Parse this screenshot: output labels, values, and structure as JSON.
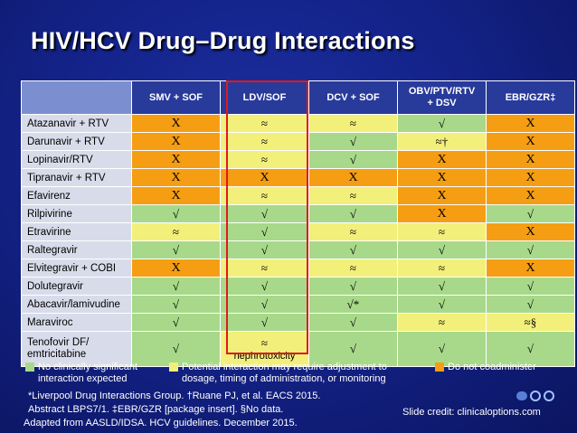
{
  "title": "HIV/HCV Drug–Drug Interactions",
  "columns": [
    "SMV + SOF",
    "LDV/SOF",
    "DCV + SOF",
    "OBV/PTV/RTV\n+ DSV",
    "EBR/GZR‡"
  ],
  "rows": [
    {
      "drug": "Atazanavir + RTV",
      "cells": [
        {
          "v": "X",
          "s": "no"
        },
        {
          "v": "≈",
          "s": "pot"
        },
        {
          "v": "≈",
          "s": "pot"
        },
        {
          "v": "√",
          "s": "ok"
        },
        {
          "v": "X",
          "s": "no"
        }
      ]
    },
    {
      "drug": "Darunavir + RTV",
      "cells": [
        {
          "v": "X",
          "s": "no"
        },
        {
          "v": "≈",
          "s": "pot"
        },
        {
          "v": "√",
          "s": "ok"
        },
        {
          "v": "≈†",
          "s": "pot"
        },
        {
          "v": "X",
          "s": "no"
        }
      ]
    },
    {
      "drug": "Lopinavir/RTV",
      "cells": [
        {
          "v": "X",
          "s": "no"
        },
        {
          "v": "≈",
          "s": "pot"
        },
        {
          "v": "√",
          "s": "ok"
        },
        {
          "v": "X",
          "s": "no"
        },
        {
          "v": "X",
          "s": "no"
        }
      ]
    },
    {
      "drug": "Tipranavir + RTV",
      "cells": [
        {
          "v": "X",
          "s": "no"
        },
        {
          "v": "X",
          "s": "no"
        },
        {
          "v": "X",
          "s": "no"
        },
        {
          "v": "X",
          "s": "no"
        },
        {
          "v": "X",
          "s": "no"
        }
      ]
    },
    {
      "drug": "Efavirenz",
      "cells": [
        {
          "v": "X",
          "s": "no"
        },
        {
          "v": "≈",
          "s": "pot"
        },
        {
          "v": "≈",
          "s": "pot"
        },
        {
          "v": "X",
          "s": "no"
        },
        {
          "v": "X",
          "s": "no"
        }
      ]
    },
    {
      "drug": "Rilpivirine",
      "cells": [
        {
          "v": "√",
          "s": "ok"
        },
        {
          "v": "√",
          "s": "ok"
        },
        {
          "v": "√",
          "s": "ok"
        },
        {
          "v": "X",
          "s": "no"
        },
        {
          "v": "√",
          "s": "ok"
        }
      ]
    },
    {
      "drug": "Etravirine",
      "cells": [
        {
          "v": "≈",
          "s": "pot"
        },
        {
          "v": "√",
          "s": "ok"
        },
        {
          "v": "≈",
          "s": "pot"
        },
        {
          "v": "≈",
          "s": "pot"
        },
        {
          "v": "X",
          "s": "no"
        }
      ]
    },
    {
      "drug": "Raltegravir",
      "cells": [
        {
          "v": "√",
          "s": "ok"
        },
        {
          "v": "√",
          "s": "ok"
        },
        {
          "v": "√",
          "s": "ok"
        },
        {
          "v": "√",
          "s": "ok"
        },
        {
          "v": "√",
          "s": "ok"
        }
      ]
    },
    {
      "drug": "Elvitegravir + COBI",
      "cells": [
        {
          "v": "X",
          "s": "no"
        },
        {
          "v": "≈",
          "s": "pot"
        },
        {
          "v": "≈",
          "s": "pot"
        },
        {
          "v": "≈",
          "s": "pot"
        },
        {
          "v": "X",
          "s": "no"
        }
      ]
    },
    {
      "drug": "Dolutegravir",
      "cells": [
        {
          "v": "√",
          "s": "ok"
        },
        {
          "v": "√",
          "s": "ok"
        },
        {
          "v": "√",
          "s": "ok"
        },
        {
          "v": "√",
          "s": "ok"
        },
        {
          "v": "√",
          "s": "ok"
        }
      ]
    },
    {
      "drug": "Abacavir/lamivudine",
      "cells": [
        {
          "v": "√",
          "s": "ok"
        },
        {
          "v": "√",
          "s": "ok"
        },
        {
          "v": "√*",
          "s": "ok"
        },
        {
          "v": "√",
          "s": "ok"
        },
        {
          "v": "√",
          "s": "ok"
        }
      ]
    },
    {
      "drug": "Maraviroc",
      "cells": [
        {
          "v": "√",
          "s": "ok"
        },
        {
          "v": "√",
          "s": "ok"
        },
        {
          "v": "√",
          "s": "ok"
        },
        {
          "v": "≈",
          "s": "pot"
        },
        {
          "v": "≈§",
          "s": "pot"
        }
      ]
    },
    {
      "drug": "Tenofovir DF/\nemtricitabine",
      "tall": true,
      "cells": [
        {
          "v": "√",
          "s": "ok"
        },
        {
          "v": "≈",
          "s": "pot",
          "sub": "nephrotoxicity"
        },
        {
          "v": "√",
          "s": "ok"
        },
        {
          "v": "√",
          "s": "ok"
        },
        {
          "v": "√",
          "s": "ok"
        }
      ]
    }
  ],
  "legend": {
    "ok": "No clinically significant\ninteraction expected",
    "pot": "Potential interaction may require adjustment to\ndosage, timing of administration, or monitoring",
    "no": "Do not coadminister"
  },
  "colors": {
    "ok": "#a8d98a",
    "pot": "#f2f07a",
    "no": "#f59e13",
    "highlight": "#e0191b"
  },
  "footnotes": {
    "line1": "*Liverpool Drug Interactions Group. †Ruane PJ, et al. EACS 2015.",
    "line2": "Abstract LBPS7/1. ‡EBR/GZR [package insert]. §No data.",
    "line3": "Adapted from AASLD/IDSA. HCV guidelines. December 2015."
  },
  "credit": "Slide credit: clinicaloptions.com",
  "logo_icon": "clinical-options-logo"
}
